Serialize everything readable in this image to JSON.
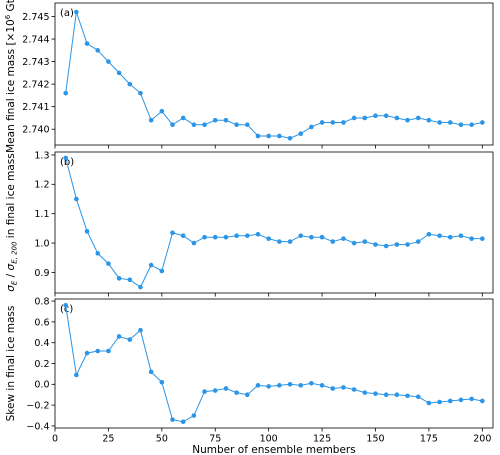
{
  "chart_data": {
    "type": "line",
    "shared_x": {
      "values": [
        5,
        10,
        15,
        20,
        25,
        30,
        35,
        40,
        45,
        50,
        55,
        60,
        65,
        70,
        75,
        80,
        85,
        90,
        95,
        100,
        105,
        110,
        115,
        120,
        125,
        130,
        135,
        140,
        145,
        150,
        155,
        160,
        165,
        170,
        175,
        180,
        185,
        190,
        195,
        200
      ],
      "xlabel": "Number of ensemble members",
      "xlim": [
        0,
        205
      ],
      "xticks": [
        0,
        25,
        50,
        75,
        100,
        125,
        150,
        175,
        200
      ]
    },
    "colors": {
      "series": "#2b95e8",
      "axes": "#000000"
    },
    "panels": [
      {
        "label": "(a)",
        "ylabel_parts": [
          "Mean final ice mass [",
          "×10",
          "6",
          " Gt]"
        ],
        "ylim": [
          2.7393,
          2.7456
        ],
        "yticks": [
          2.74,
          2.741,
          2.742,
          2.743,
          2.744,
          2.745
        ],
        "ytick_labels": [
          "2.740",
          "2.741",
          "2.742",
          "2.743",
          "2.744",
          "2.745"
        ],
        "values": [
          2.7416,
          2.7452,
          2.7438,
          2.7435,
          2.743,
          2.7425,
          2.742,
          2.7416,
          2.7404,
          2.7408,
          2.7402,
          2.7405,
          2.7402,
          2.7402,
          2.7404,
          2.7404,
          2.7402,
          2.7402,
          2.7397,
          2.7397,
          2.7397,
          2.7396,
          2.7398,
          2.7401,
          2.7403,
          2.7403,
          2.7403,
          2.7405,
          2.7405,
          2.7406,
          2.7406,
          2.7405,
          2.7404,
          2.7405,
          2.7404,
          2.7403,
          2.7403,
          2.7402,
          2.7402,
          2.7403
        ]
      },
      {
        "label": "(b)",
        "ylabel_parts": [
          "σ",
          "E",
          " / ",
          "σ",
          "E, 200",
          " in final ice mass"
        ],
        "ylim": [
          0.83,
          1.31
        ],
        "yticks": [
          0.9,
          1.0,
          1.1,
          1.2,
          1.3
        ],
        "ytick_labels": [
          "0.9",
          "1.0",
          "1.1",
          "1.2",
          "1.3"
        ],
        "values": [
          1.29,
          1.15,
          1.04,
          0.965,
          0.93,
          0.88,
          0.875,
          0.85,
          0.925,
          0.905,
          1.035,
          1.025,
          1.0,
          1.02,
          1.02,
          1.02,
          1.025,
          1.025,
          1.03,
          1.015,
          1.005,
          1.005,
          1.025,
          1.02,
          1.02,
          1.005,
          1.015,
          1.0,
          1.005,
          0.995,
          0.99,
          0.995,
          0.995,
          1.005,
          1.03,
          1.025,
          1.02,
          1.025,
          1.015,
          1.015
        ]
      },
      {
        "label": "(c)",
        "ylabel_parts": [
          "Skew in final ice mass"
        ],
        "ylim": [
          -0.42,
          0.82
        ],
        "yticks": [
          -0.4,
          -0.2,
          0.0,
          0.2,
          0.4,
          0.6,
          0.8
        ],
        "ytick_labels": [
          "−0.4",
          "−0.2",
          "0.0",
          "0.2",
          "0.4",
          "0.6",
          "0.8"
        ],
        "values": [
          0.76,
          0.09,
          0.3,
          0.32,
          0.32,
          0.46,
          0.43,
          0.52,
          0.12,
          0.02,
          -0.34,
          -0.36,
          -0.3,
          -0.07,
          -0.06,
          -0.04,
          -0.08,
          -0.1,
          -0.01,
          -0.02,
          -0.01,
          0.0,
          -0.01,
          0.01,
          -0.01,
          -0.04,
          -0.03,
          -0.05,
          -0.08,
          -0.09,
          -0.1,
          -0.1,
          -0.11,
          -0.12,
          -0.18,
          -0.17,
          -0.16,
          -0.15,
          -0.14,
          -0.16
        ]
      }
    ]
  }
}
